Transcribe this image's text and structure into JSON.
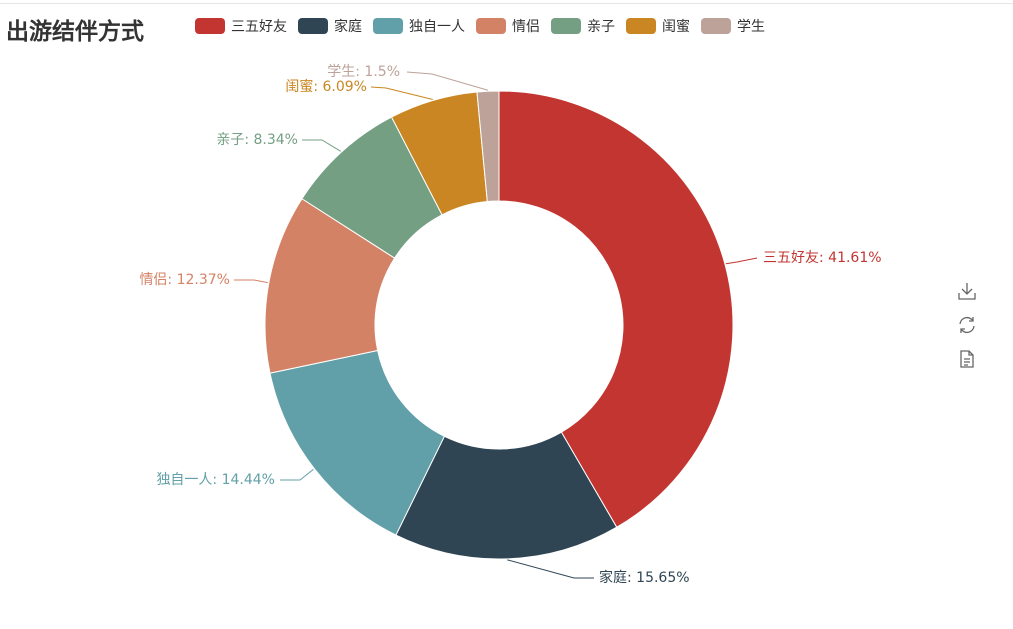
{
  "title": "出游结伴方式",
  "legend": [
    {
      "label": "三五好友",
      "color": "#c23531"
    },
    {
      "label": "家庭",
      "color": "#2f4554"
    },
    {
      "label": "独自一人",
      "color": "#61a0a8"
    },
    {
      "label": "情侣",
      "color": "#d48265"
    },
    {
      "label": "亲子",
      "color": "#749f83"
    },
    {
      "label": "闺蜜",
      "color": "#ca8622"
    },
    {
      "label": "学生",
      "color": "#bda29a"
    }
  ],
  "toolbox": [
    {
      "name": "download-icon"
    },
    {
      "name": "refresh-icon"
    },
    {
      "name": "data-view-icon"
    }
  ],
  "chart_data": {
    "type": "pie",
    "donut": true,
    "title": "出游结伴方式",
    "legend_position": "top",
    "slices": [
      {
        "label": "三五好友",
        "value": 41.61,
        "color": "#c23531",
        "text": "三五好友: 41.61%"
      },
      {
        "label": "家庭",
        "value": 15.65,
        "color": "#2f4554",
        "text": "家庭: 15.65%"
      },
      {
        "label": "独自一人",
        "value": 14.44,
        "color": "#61a0a8",
        "text": "独自一人: 14.44%"
      },
      {
        "label": "情侣",
        "value": 12.37,
        "color": "#d48265",
        "text": "情侣: 12.37%"
      },
      {
        "label": "亲子",
        "value": 8.34,
        "color": "#749f83",
        "text": "亲子: 8.34%"
      },
      {
        "label": "闺蜜",
        "value": 6.09,
        "color": "#ca8622",
        "text": "闺蜜: 6.09%"
      },
      {
        "label": "学生",
        "value": 1.5,
        "color": "#bda29a",
        "text": "学生: 1.5%"
      }
    ]
  }
}
